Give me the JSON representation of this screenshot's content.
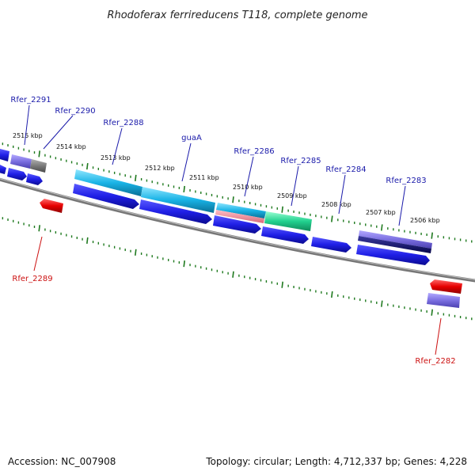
{
  "title": "Rhodoferax ferrireducens T118, complete genome",
  "accession_text": "Accession: NC_007908",
  "topology_text": "Topology: circular; Length: 4,712,337 bp; Genes: 4,228",
  "colors": {
    "backbone": "#7a7a7a",
    "tick": "#1f7a1f",
    "forward_label": "#1a1aaa",
    "reverse_label": "#cc1111",
    "cds": "#1f1fe6",
    "reverse_cds": "#e60000",
    "cyan_feature": "#19b3e6",
    "gray_feature": "#8a8a8a",
    "purple_feature": "#7b6fe0",
    "teal_feature": "#22d18f",
    "pink_feature": "#e88a9a",
    "navy_feature": "#10106e"
  },
  "tick_labels": [
    "2515 kbp",
    "2514 kbp",
    "2513 kbp",
    "2512 kbp",
    "2511 kbp",
    "2510 kbp",
    "2509 kbp",
    "2508 kbp",
    "2507 kbp",
    "2506 kbp"
  ],
  "forward_labels": [
    "Rfer_2291",
    "Rfer_2290",
    "Rfer_2288",
    "guaA",
    "Rfer_2286",
    "Rfer_2285",
    "Rfer_2284",
    "Rfer_2283"
  ],
  "reverse_labels": [
    "Rfer_2289",
    "Rfer_2282"
  ]
}
